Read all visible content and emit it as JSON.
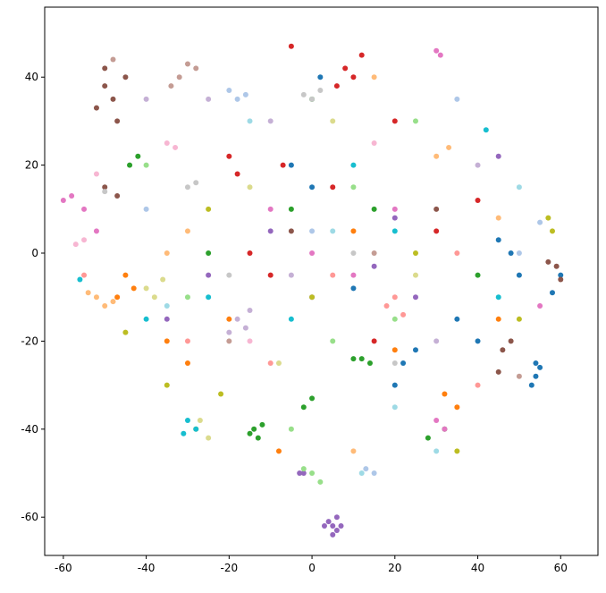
{
  "chart_data": {
    "type": "scatter",
    "xlim": [
      -64.5,
      69
    ],
    "ylim": [
      -68.7,
      55.9
    ],
    "xticks": [
      -60,
      -40,
      -20,
      0,
      20,
      40,
      60
    ],
    "yticks": [
      -60,
      -40,
      -20,
      0,
      20,
      40
    ],
    "grid": false,
    "series": [
      {
        "color": "#9467bd",
        "x": [
          4,
          5,
          6,
          7,
          5,
          3,
          6,
          -3,
          -2,
          20,
          -10,
          15,
          -25,
          45,
          25,
          0,
          -35
        ],
        "values": [
          -61,
          -62,
          -63,
          -62,
          -64,
          -62,
          -60,
          -50,
          -50,
          8,
          5,
          -3,
          -5,
          22,
          -10,
          -10,
          -15
        ]
      },
      {
        "color": "#1f77b4",
        "x": [
          54,
          54,
          55,
          53,
          58,
          60,
          22,
          25,
          48,
          45,
          0,
          -5,
          10,
          35,
          50,
          2,
          40,
          20
        ],
        "values": [
          -25,
          -28,
          -26,
          -30,
          -9,
          -5,
          -25,
          -22,
          0,
          3,
          15,
          20,
          -8,
          -15,
          -5,
          40,
          -20,
          -30
        ]
      },
      {
        "color": "#8c564b",
        "x": [
          -50,
          -48,
          -52,
          -45,
          -50,
          -47,
          59,
          60,
          57,
          -50,
          -47,
          48,
          46,
          45,
          30,
          -5
        ],
        "values": [
          38,
          35,
          33,
          40,
          42,
          30,
          -3,
          -6,
          -2,
          15,
          13,
          -20,
          -22,
          -27,
          10,
          5
        ]
      },
      {
        "color": "#c49c94",
        "x": [
          -32,
          -30,
          -28,
          -34,
          50,
          -48,
          15,
          -20
        ],
        "values": [
          40,
          43,
          42,
          38,
          -28,
          44,
          0,
          -20
        ]
      },
      {
        "color": "#2ca02c",
        "x": [
          -14,
          -13,
          -15,
          -12,
          0,
          -2,
          12,
          14,
          10,
          -44,
          -42,
          32,
          28,
          -5,
          15,
          -25,
          40,
          0
        ],
        "values": [
          -40,
          -42,
          -41,
          -39,
          -33,
          -35,
          -24,
          -25,
          -24,
          20,
          22,
          -40,
          -42,
          10,
          10,
          0,
          -5,
          35
        ]
      },
      {
        "color": "#98df8a",
        "x": [
          0,
          2,
          -2,
          -5,
          10,
          -30,
          20,
          5,
          -40,
          25
        ],
        "values": [
          -50,
          -52,
          -49,
          -40,
          15,
          -10,
          -15,
          -20,
          20,
          30
        ]
      },
      {
        "color": "#d62728",
        "x": [
          8,
          10,
          12,
          6,
          -5,
          -20,
          -18,
          5,
          -7,
          30,
          40,
          -10,
          20,
          15,
          -15
        ],
        "values": [
          42,
          40,
          45,
          38,
          47,
          22,
          18,
          15,
          20,
          5,
          12,
          -5,
          30,
          -20,
          0
        ]
      },
      {
        "color": "#ff9896",
        "x": [
          18,
          20,
          22,
          -30,
          35,
          -55,
          5,
          -10,
          40
        ],
        "values": [
          -12,
          -10,
          -14,
          -20,
          0,
          -5,
          -5,
          -25,
          -30
        ]
      },
      {
        "color": "#ff7f0e",
        "x": [
          -45,
          -43,
          -47,
          -35,
          -30,
          32,
          35,
          20,
          -20,
          10,
          45,
          -8
        ],
        "values": [
          -5,
          -8,
          -10,
          -20,
          -25,
          -32,
          -35,
          -22,
          -15,
          5,
          -15,
          -45
        ]
      },
      {
        "color": "#ffbb78",
        "x": [
          -52,
          -50,
          -48,
          -54,
          30,
          33,
          15,
          -35,
          -30,
          10,
          45
        ],
        "values": [
          -10,
          -12,
          -11,
          -9,
          22,
          24,
          40,
          0,
          5,
          -45,
          8
        ]
      },
      {
        "color": "#bcbd22",
        "x": [
          57,
          58,
          -35,
          -28,
          50,
          25,
          -45,
          -22,
          0,
          35,
          -25
        ],
        "values": [
          8,
          5,
          -30,
          -40,
          -15,
          0,
          -18,
          -32,
          -10,
          -45,
          10
        ]
      },
      {
        "color": "#dbdb8d",
        "x": [
          -40,
          -38,
          -36,
          -25,
          -27,
          -8,
          5,
          25,
          -15
        ],
        "values": [
          -8,
          -10,
          -6,
          -42,
          -38,
          -25,
          30,
          -5,
          15
        ]
      },
      {
        "color": "#17becf",
        "x": [
          -30,
          -28,
          -31,
          -40,
          42,
          -56,
          -5,
          20,
          10,
          -25,
          45
        ],
        "values": [
          -38,
          -40,
          -41,
          -15,
          28,
          -6,
          -15,
          5,
          20,
          -10,
          -10
        ]
      },
      {
        "color": "#9edae5",
        "x": [
          12,
          30,
          20,
          -15,
          5,
          -35,
          50
        ],
        "values": [
          -50,
          -45,
          -35,
          30,
          5,
          -12,
          15
        ]
      },
      {
        "color": "#e377c2",
        "x": [
          -58,
          -60,
          -55,
          -52,
          30,
          32,
          55,
          10,
          20,
          -10,
          0,
          30,
          31
        ],
        "values": [
          13,
          12,
          10,
          5,
          -38,
          -40,
          -12,
          -5,
          10,
          10,
          0,
          46,
          45
        ]
      },
      {
        "color": "#f7b6d2",
        "x": [
          -35,
          -33,
          -55,
          -57,
          -52,
          -15,
          15
        ],
        "values": [
          25,
          24,
          3,
          2,
          18,
          -20,
          25
        ]
      },
      {
        "color": "#c5b0d5",
        "x": [
          -18,
          -15,
          -20,
          -16,
          -25,
          -40,
          -10,
          30,
          -5,
          40
        ],
        "values": [
          -15,
          -13,
          -18,
          -17,
          35,
          35,
          30,
          -20,
          -5,
          20
        ]
      },
      {
        "color": "#c7c7c7",
        "x": [
          0,
          2,
          -2,
          -30,
          -28,
          -50,
          10,
          -20,
          20
        ],
        "values": [
          35,
          37,
          36,
          15,
          16,
          14,
          0,
          -5,
          -25
        ]
      },
      {
        "color": "#aec7e8",
        "x": [
          -20,
          -18,
          -16,
          15,
          13,
          50,
          55,
          -40,
          0,
          35
        ],
        "values": [
          37,
          35,
          36,
          -50,
          -49,
          0,
          7,
          10,
          5,
          35
        ]
      }
    ]
  }
}
